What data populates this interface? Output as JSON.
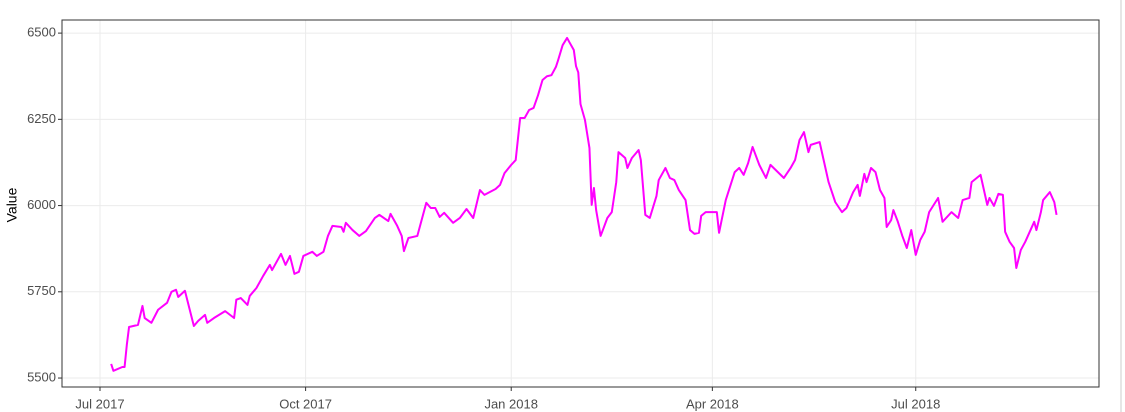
{
  "chart_data": {
    "type": "line",
    "y_label": "Value",
    "color": "#ff00ff",
    "grid": true,
    "xlim": [
      "2017-06-14",
      "2018-09-21"
    ],
    "xticks": [
      {
        "value": "2017-07-01",
        "label": "Jul 2017"
      },
      {
        "value": "2017-10-01",
        "label": "Oct 2017"
      },
      {
        "value": "2018-01-01",
        "label": "Jan 2018"
      },
      {
        "value": "2018-04-01",
        "label": "Apr 2018"
      },
      {
        "value": "2018-07-01",
        "label": "Jul 2018"
      }
    ],
    "ylim": [
      5474,
      6538
    ],
    "yticks": [
      5500,
      5750,
      6000,
      6250,
      6500
    ],
    "x": [
      "2017-07-06",
      "2017-07-07",
      "2017-07-11",
      "2017-07-12",
      "2017-07-13",
      "2017-07-14",
      "2017-07-18",
      "2017-07-20",
      "2017-07-21",
      "2017-07-24",
      "2017-07-27",
      "2017-07-31",
      "2017-08-02",
      "2017-08-04",
      "2017-08-05",
      "2017-08-08",
      "2017-08-12",
      "2017-08-14",
      "2017-08-17",
      "2017-08-18",
      "2017-08-21",
      "2017-08-26",
      "2017-08-30",
      "2017-08-31",
      "2017-09-02",
      "2017-09-05",
      "2017-09-06",
      "2017-09-09",
      "2017-09-12",
      "2017-09-15",
      "2017-09-16",
      "2017-09-20",
      "2017-09-22",
      "2017-09-24",
      "2017-09-26",
      "2017-09-28",
      "2017-09-30",
      "2017-10-04",
      "2017-10-06",
      "2017-10-09",
      "2017-10-11",
      "2017-10-13",
      "2017-10-17",
      "2017-10-18",
      "2017-10-19",
      "2017-10-22",
      "2017-10-25",
      "2017-10-28",
      "2017-11-01",
      "2017-11-03",
      "2017-11-07",
      "2017-11-08",
      "2017-11-11",
      "2017-11-13",
      "2017-11-14",
      "2017-11-16",
      "2017-11-20",
      "2017-11-24",
      "2017-11-26",
      "2017-11-28",
      "2017-11-30",
      "2017-12-02",
      "2017-12-06",
      "2017-12-09",
      "2017-12-12",
      "2017-12-15",
      "2017-12-18",
      "2017-12-20",
      "2017-12-25",
      "2017-12-27",
      "2017-12-29",
      "2018-01-01",
      "2018-01-03",
      "2018-01-05",
      "2018-01-07",
      "2018-01-09",
      "2018-01-11",
      "2018-01-13",
      "2018-01-15",
      "2018-01-17",
      "2018-01-19",
      "2018-01-21",
      "2018-01-22",
      "2018-01-24",
      "2018-01-26",
      "2018-01-27",
      "2018-01-29",
      "2018-01-30",
      "2018-01-31",
      "2018-02-01",
      "2018-02-03",
      "2018-02-05",
      "2018-02-06",
      "2018-02-07",
      "2018-02-08",
      "2018-02-10",
      "2018-02-11",
      "2018-02-13",
      "2018-02-15",
      "2018-02-17",
      "2018-02-18",
      "2018-02-21",
      "2018-02-22",
      "2018-02-24",
      "2018-02-27",
      "2018-02-28",
      "2018-03-02",
      "2018-03-04",
      "2018-03-07",
      "2018-03-08",
      "2018-03-11",
      "2018-03-13",
      "2018-03-15",
      "2018-03-17",
      "2018-03-20",
      "2018-03-22",
      "2018-03-24",
      "2018-03-26",
      "2018-03-27",
      "2018-03-29",
      "2018-04-03",
      "2018-04-04",
      "2018-04-05",
      "2018-04-07",
      "2018-04-11",
      "2018-04-13",
      "2018-04-15",
      "2018-04-17",
      "2018-04-19",
      "2018-04-22",
      "2018-04-25",
      "2018-04-27",
      "2018-05-03",
      "2018-05-06",
      "2018-05-08",
      "2018-05-10",
      "2018-05-12",
      "2018-05-14",
      "2018-05-15",
      "2018-05-19",
      "2018-05-21",
      "2018-05-23",
      "2018-05-26",
      "2018-05-29",
      "2018-05-31",
      "2018-06-03",
      "2018-06-05",
      "2018-06-06",
      "2018-06-08",
      "2018-06-09",
      "2018-06-11",
      "2018-06-13",
      "2018-06-15",
      "2018-06-17",
      "2018-06-18",
      "2018-06-20",
      "2018-06-21",
      "2018-06-23",
      "2018-06-25",
      "2018-06-27",
      "2018-06-29",
      "2018-07-01",
      "2018-07-03",
      "2018-07-05",
      "2018-07-07",
      "2018-07-11",
      "2018-07-13",
      "2018-07-17",
      "2018-07-20",
      "2018-07-22",
      "2018-07-25",
      "2018-07-26",
      "2018-07-30",
      "2018-07-31",
      "2018-08-02",
      "2018-08-03",
      "2018-08-05",
      "2018-08-07",
      "2018-08-09",
      "2018-08-10",
      "2018-08-12",
      "2018-08-14",
      "2018-08-15",
      "2018-08-17",
      "2018-08-19",
      "2018-08-21",
      "2018-08-23",
      "2018-08-24",
      "2018-08-26",
      "2018-08-27",
      "2018-08-30",
      "2018-09-01",
      "2018-09-02"
    ],
    "values": [
      5541,
      5521,
      5532,
      5532,
      5596,
      5648,
      5654,
      5709,
      5674,
      5660,
      5698,
      5718,
      5750,
      5756,
      5735,
      5753,
      5651,
      5666,
      5683,
      5660,
      5674,
      5694,
      5674,
      5727,
      5732,
      5712,
      5738,
      5761,
      5796,
      5828,
      5813,
      5860,
      5828,
      5854,
      5802,
      5808,
      5854,
      5866,
      5854,
      5866,
      5912,
      5941,
      5938,
      5924,
      5950,
      5929,
      5912,
      5926,
      5964,
      5973,
      5955,
      5976,
      5941,
      5912,
      5868,
      5906,
      5912,
      6008,
      5993,
      5993,
      5967,
      5979,
      5950,
      5964,
      5990,
      5964,
      6045,
      6031,
      6048,
      6060,
      6094,
      6118,
      6132,
      6254,
      6254,
      6277,
      6283,
      6320,
      6364,
      6375,
      6378,
      6402,
      6422,
      6465,
      6486,
      6474,
      6451,
      6404,
      6386,
      6294,
      6248,
      6167,
      6002,
      6051,
      5987,
      5912,
      5929,
      5964,
      5981,
      6068,
      6155,
      6138,
      6109,
      6138,
      6161,
      6132,
      5973,
      5964,
      6028,
      6074,
      6109,
      6080,
      6074,
      6045,
      6016,
      5929,
      5918,
      5921,
      5970,
      5981,
      5981,
      5921,
      5953,
      6016,
      6097,
      6109,
      6089,
      6123,
      6170,
      6118,
      6080,
      6118,
      6080,
      6109,
      6132,
      6190,
      6213,
      6155,
      6176,
      6184,
      6126,
      6068,
      6010,
      5981,
      5993,
      6039,
      6060,
      6028,
      6092,
      6068,
      6109,
      6097,
      6045,
      6022,
      5938,
      5958,
      5987,
      5953,
      5912,
      5877,
      5929,
      5857,
      5900,
      5924,
      5981,
      6022,
      5953,
      5981,
      5964,
      6016,
      6022,
      6068,
      6089,
      6060,
      6002,
      6022,
      5999,
      6034,
      6031,
      5924,
      5895,
      5877,
      5819,
      5871,
      5895,
      5924,
      5953,
      5929,
      5981,
      6016,
      6039,
      6010,
      5973
    ]
  }
}
